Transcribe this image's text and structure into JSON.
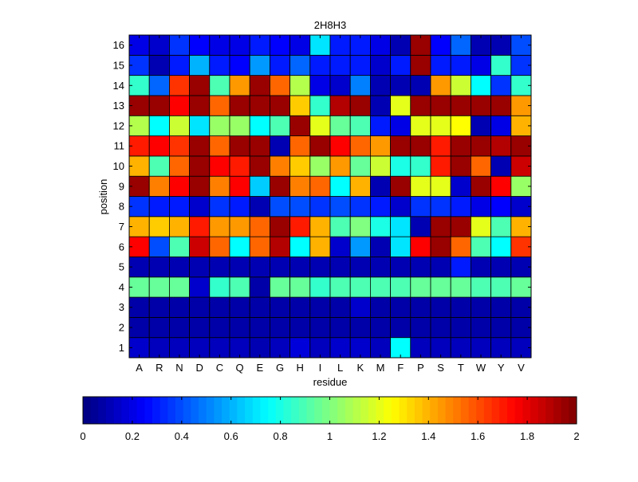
{
  "chart_data": {
    "type": "heatmap",
    "title": "2H8H3",
    "xlabel": "residue",
    "ylabel": "position",
    "x_categories": [
      "A",
      "R",
      "N",
      "D",
      "C",
      "Q",
      "E",
      "G",
      "H",
      "I",
      "L",
      "K",
      "M",
      "F",
      "P",
      "S",
      "T",
      "W",
      "Y",
      "V"
    ],
    "y_categories": [
      "1",
      "2",
      "3",
      "4",
      "5",
      "6",
      "7",
      "8",
      "9",
      "10",
      "11",
      "12",
      "13",
      "14",
      "15",
      "16"
    ],
    "clim": [
      0,
      2
    ],
    "colormap": "jet",
    "colorbar": {
      "orientation": "horizontal",
      "placement": "bottom",
      "ticks": [
        0,
        0.2,
        0.4,
        0.6,
        0.8,
        1,
        1.2,
        1.4,
        1.6,
        1.8,
        2
      ],
      "tick_labels": [
        "0",
        "0.2",
        "0.4",
        "0.6",
        "0.8",
        "1",
        "1.2",
        "1.4",
        "1.6",
        "1.8",
        "2"
      ]
    },
    "rows": [
      {
        "position": "1",
        "values": [
          0.15,
          0.12,
          0.12,
          0.12,
          0.12,
          0.12,
          0.1,
          0.12,
          0.18,
          0.12,
          0.15,
          0.15,
          0.12,
          0.75,
          0.12,
          0.12,
          0.12,
          0.12,
          0.12,
          0.12
        ]
      },
      {
        "position": "2",
        "values": [
          0.08,
          0.08,
          0.08,
          0.08,
          0.08,
          0.08,
          0.08,
          0.08,
          0.08,
          0.08,
          0.08,
          0.08,
          0.08,
          0.08,
          0.08,
          0.08,
          0.08,
          0.08,
          0.08,
          0.08
        ]
      },
      {
        "position": "3",
        "values": [
          0.08,
          0.08,
          0.08,
          0.08,
          0.08,
          0.08,
          0.08,
          0.08,
          0.08,
          0.08,
          0.08,
          0.15,
          0.08,
          0.08,
          0.08,
          0.08,
          0.08,
          0.08,
          0.08,
          0.08
        ]
      },
      {
        "position": "4",
        "values": [
          0.95,
          0.95,
          0.95,
          0.15,
          0.85,
          0.9,
          0.08,
          0.95,
          0.95,
          0.85,
          0.9,
          0.9,
          0.9,
          0.9,
          0.95,
          0.95,
          0.95,
          0.9,
          0.9,
          0.95
        ]
      },
      {
        "position": "5",
        "values": [
          0.1,
          0.1,
          0.1,
          0.1,
          0.1,
          0.1,
          0.1,
          0.1,
          0.1,
          0.1,
          0.1,
          0.1,
          0.1,
          0.1,
          0.1,
          0.1,
          0.3,
          0.1,
          0.1,
          0.1
        ]
      },
      {
        "position": "6",
        "values": [
          1.75,
          0.4,
          0.9,
          1.85,
          1.55,
          0.75,
          1.55,
          1.9,
          0.75,
          1.4,
          0.15,
          0.55,
          0.1,
          0.7,
          1.75,
          1.95,
          1.55,
          0.9,
          0.75,
          1.65
        ]
      },
      {
        "position": "7",
        "values": [
          1.4,
          1.35,
          1.4,
          1.7,
          1.45,
          1.45,
          1.55,
          1.95,
          1.7,
          1.4,
          0.9,
          1.0,
          0.8,
          0.7,
          0.1,
          1.95,
          1.95,
          1.2,
          0.9,
          1.4
        ]
      },
      {
        "position": "8",
        "values": [
          0.35,
          0.3,
          0.3,
          0.15,
          0.35,
          0.3,
          0.1,
          0.4,
          0.4,
          0.35,
          0.4,
          0.35,
          0.3,
          0.15,
          0.35,
          0.35,
          0.3,
          0.2,
          0.25,
          0.15
        ]
      },
      {
        "position": "9",
        "values": [
          1.95,
          1.5,
          1.75,
          1.95,
          1.5,
          1.75,
          0.65,
          1.95,
          1.5,
          1.55,
          0.75,
          1.4,
          0.1,
          1.95,
          1.2,
          1.2,
          0.15,
          1.95,
          1.75,
          1.05
        ]
      },
      {
        "position": "10",
        "values": [
          1.4,
          0.9,
          1.55,
          1.95,
          1.75,
          1.7,
          1.95,
          1.5,
          1.35,
          1.05,
          1.45,
          0.95,
          1.15,
          0.8,
          0.85,
          1.7,
          1.95,
          1.55,
          0.1,
          1.85
        ]
      },
      {
        "position": "11",
        "values": [
          1.7,
          1.75,
          1.65,
          1.95,
          1.55,
          1.95,
          1.95,
          0.1,
          1.55,
          1.95,
          1.75,
          1.55,
          1.45,
          1.95,
          1.95,
          1.7,
          1.95,
          1.95,
          1.9,
          1.95
        ]
      },
      {
        "position": "12",
        "values": [
          1.1,
          0.75,
          1.15,
          0.7,
          1.05,
          1.05,
          0.75,
          0.9,
          1.95,
          1.2,
          0.95,
          0.9,
          0.3,
          0.2,
          1.2,
          1.2,
          1.25,
          0.1,
          0.2,
          1.4
        ]
      },
      {
        "position": "13",
        "values": [
          1.95,
          1.95,
          1.75,
          1.95,
          1.55,
          1.95,
          1.95,
          1.95,
          1.35,
          0.85,
          1.9,
          1.95,
          0.1,
          1.2,
          1.95,
          1.95,
          1.95,
          1.95,
          1.95,
          1.45
        ]
      },
      {
        "position": "14",
        "values": [
          0.85,
          0.45,
          1.65,
          1.95,
          0.9,
          1.45,
          1.95,
          1.55,
          1.1,
          0.2,
          0.15,
          0.5,
          0.1,
          0.1,
          0.1,
          1.45,
          1.15,
          0.75,
          0.35,
          0.85
        ]
      },
      {
        "position": "15",
        "values": [
          0.35,
          0.1,
          0.3,
          0.6,
          0.3,
          0.25,
          0.55,
          0.3,
          0.45,
          0.3,
          0.3,
          0.3,
          0.15,
          0.3,
          1.95,
          0.3,
          0.3,
          0.2,
          0.85,
          0.35
        ]
      },
      {
        "position": "16",
        "values": [
          0.2,
          0.15,
          0.35,
          0.25,
          0.2,
          0.2,
          0.3,
          0.25,
          0.2,
          0.7,
          0.3,
          0.3,
          0.2,
          0.1,
          1.95,
          0.25,
          0.45,
          0.1,
          0.1,
          0.4
        ]
      }
    ]
  }
}
